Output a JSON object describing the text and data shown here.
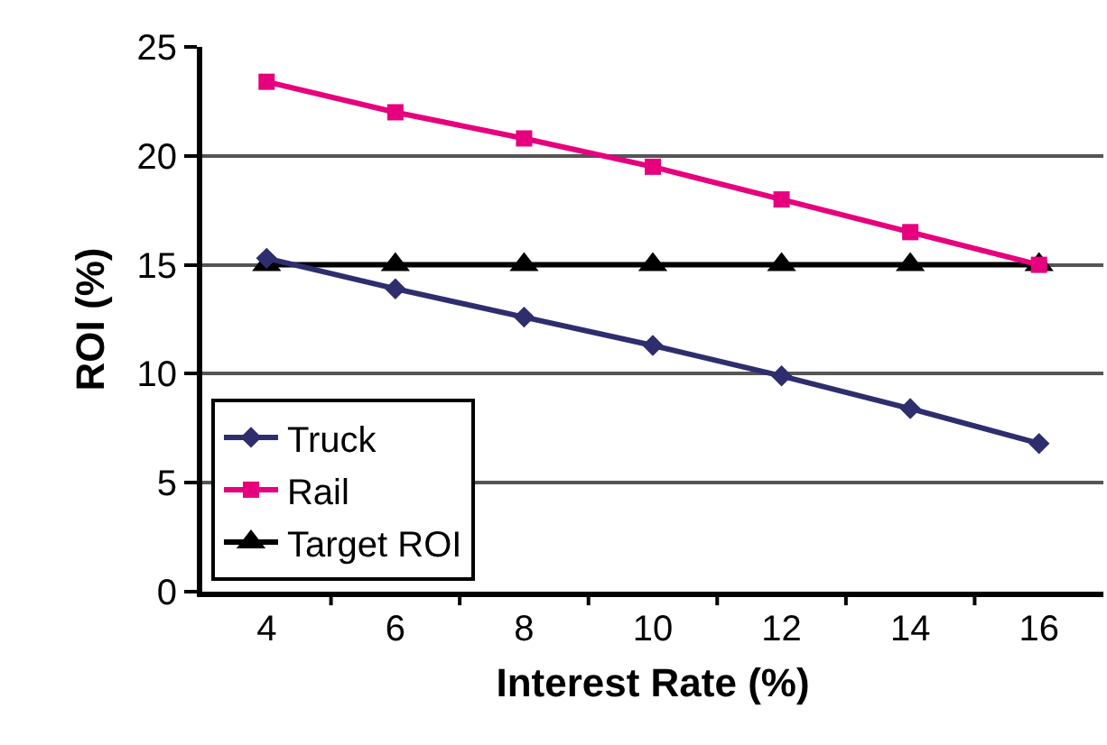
{
  "chart_data": {
    "type": "line",
    "xlabel": "Interest Rate (%)",
    "ylabel": "ROI (%)",
    "categories": [
      "4",
      "6",
      "8",
      "10",
      "12",
      "14",
      "16"
    ],
    "series": [
      {
        "name": "Truck",
        "color": "#2e2e6e",
        "marker": "diamond",
        "values": [
          15.3,
          13.9,
          12.6,
          11.3,
          9.9,
          8.4,
          6.8
        ]
      },
      {
        "name": "Rail",
        "color": "#e6007e",
        "marker": "square",
        "values": [
          23.4,
          22.0,
          20.8,
          19.5,
          18.0,
          16.5,
          15.0
        ]
      },
      {
        "name": "Target ROI",
        "color": "#000000",
        "marker": "triangle",
        "values": [
          15,
          15,
          15,
          15,
          15,
          15,
          15
        ]
      }
    ],
    "ylim": [
      0,
      25
    ],
    "yticks": [
      0,
      5,
      10,
      15,
      20,
      25
    ],
    "grid": "y",
    "legend": "bottom left"
  }
}
